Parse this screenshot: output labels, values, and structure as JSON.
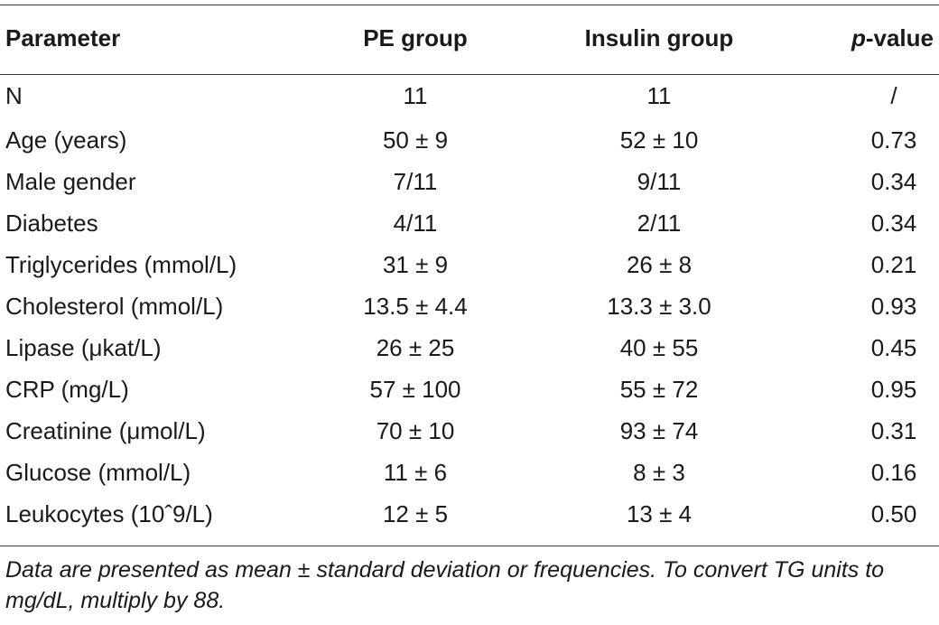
{
  "table": {
    "columns": [
      "Parameter",
      "PE group",
      "Insulin group"
    ],
    "pvalue_header": {
      "prefix": "p",
      "suffix": "-value"
    },
    "rows": [
      {
        "parameter": "N",
        "pe": "11",
        "insulin": "11",
        "p": "/"
      },
      {
        "parameter": "Age (years)",
        "pe": "50 ± 9",
        "insulin": "52 ± 10",
        "p": "0.73"
      },
      {
        "parameter": "Male gender",
        "pe": "7/11",
        "insulin": "9/11",
        "p": "0.34"
      },
      {
        "parameter": "Diabetes",
        "pe": "4/11",
        "insulin": "2/11",
        "p": "0.34"
      },
      {
        "parameter": "Triglycerides (mmol/L)",
        "pe": "31 ± 9",
        "insulin": "26 ± 8",
        "p": "0.21"
      },
      {
        "parameter": "Cholesterol (mmol/L)",
        "pe": "13.5 ± 4.4",
        "insulin": "13.3 ± 3.0",
        "p": "0.93"
      },
      {
        "parameter": "Lipase (μkat/L)",
        "pe": "26 ± 25",
        "insulin": "40 ± 55",
        "p": "0.45"
      },
      {
        "parameter": "CRP (mg/L)",
        "pe": "57 ± 100",
        "insulin": "55 ± 72",
        "p": "0.95"
      },
      {
        "parameter": "Creatinine (μmol/L)",
        "pe": "70 ± 10",
        "insulin": "93 ± 74",
        "p": "0.31"
      },
      {
        "parameter": "Glucose (mmol/L)",
        "pe": "11 ± 6",
        "insulin": "8 ± 3",
        "p": "0.16"
      },
      {
        "parameter": "Leukocytes (10ˆ9/L)",
        "pe": "12 ± 5",
        "insulin": "13 ± 4",
        "p": "0.50"
      }
    ]
  },
  "footnote": "Data are presented as mean ± standard deviation or frequencies. To convert TG units to mg/dL, multiply by 88."
}
